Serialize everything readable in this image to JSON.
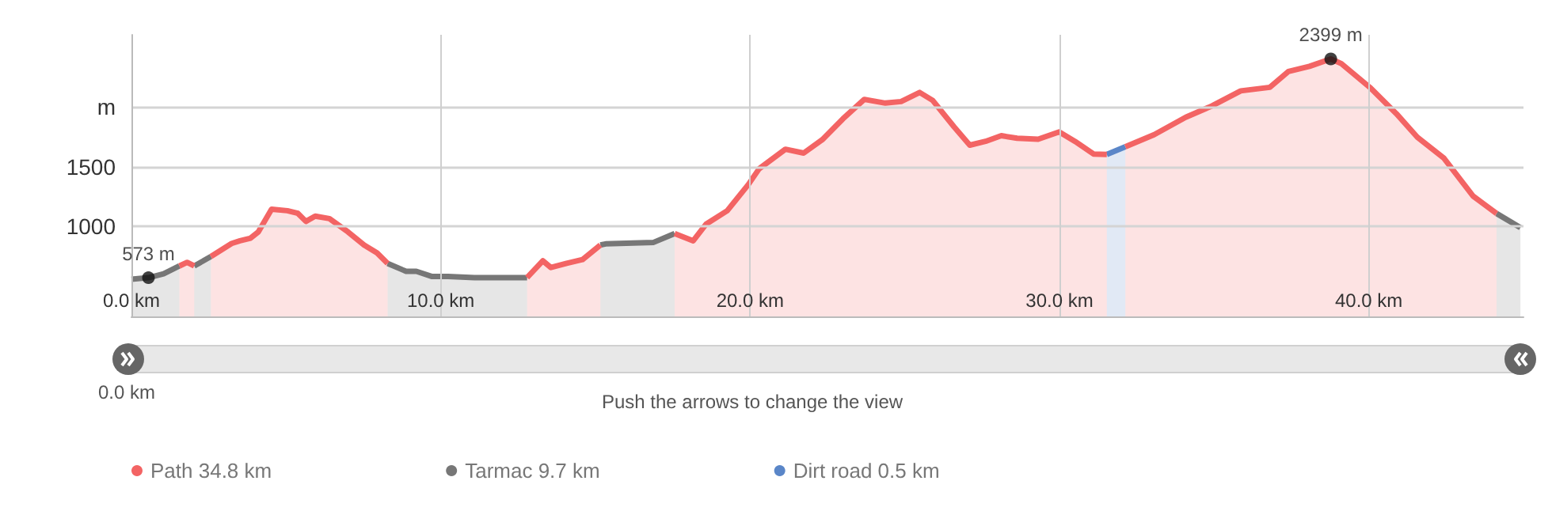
{
  "chart_data": {
    "type": "area",
    "xlim": [
      0,
      45
    ],
    "xticks": [
      {
        "value": 0,
        "label": "0.0 km"
      },
      {
        "value": 10,
        "label": "10.0 km"
      },
      {
        "value": 20,
        "label": "20.0 km"
      },
      {
        "value": 30,
        "label": "30.0 km"
      },
      {
        "value": 40,
        "label": "40.0 km"
      }
    ],
    "ylim": [
      250,
      2600
    ],
    "yticks": [
      1000,
      1500,
      {
        "value": 2000,
        "label": "m"
      }
    ],
    "grid": true,
    "legend": "bottom",
    "marker": "none",
    "line_style": "solid",
    "series": [
      {
        "name": "Path 34.8 km",
        "color": "#f36464",
        "x": [
          1.55,
          1.8,
          2.03,
          2.3,
          2.57,
          3.24,
          3.51,
          3.85,
          4.1,
          4.53,
          5.04,
          5.38,
          5.64,
          5.94,
          6.4,
          7.0,
          7.52,
          7.94,
          8.28,
          10.5,
          12.79,
          13.3,
          13.56,
          14.07,
          14.58,
          15.16,
          16.4,
          17.56,
          18.16,
          18.58,
          19.26,
          19.94,
          20.29,
          21.14,
          21.73,
          22.33,
          23.0,
          23.69,
          24.37,
          24.88,
          25.48,
          25.9,
          26.59,
          27.1,
          27.61,
          28.12,
          28.63,
          29.31,
          29.99,
          30.5,
          31.1,
          31.53,
          31.8,
          32.13,
          33.06,
          34.08,
          34.94,
          35.86,
          36.8,
          37.4,
          38.08,
          38.77,
          39.11,
          40.03,
          40.89,
          41.57,
          42.43,
          43.37,
          44.13
        ],
        "values": [
          671,
          701,
          671,
          null,
          750,
          859,
          881,
          903,
          955,
          1145,
          1132,
          1110,
          1043,
          1087,
          1066,
          955,
          846,
          780,
          692,
          null,
          574,
          714,
          658,
          693,
          724,
          846,
          null,
          942,
          881,
          1021,
          1132,
          1350,
          1482,
          1645,
          1613,
          1724,
          1899,
          2061,
          2030,
          2043,
          2119,
          2053,
          1833,
          1679,
          1711,
          1758,
          1737,
          1729,
          1790,
          1711,
          1605,
          1602,
          null,
          1666,
          1767,
          1912,
          2008,
          2132,
          2162,
          2294,
          2337,
          2399,
          2360,
          2162,
          1942,
          1745,
          1570,
          1254,
          1109
        ]
      },
      {
        "name": "Tarmac 9.7 km",
        "color": "#777777",
        "x": [
          0,
          0.55,
          1.04,
          1.55,
          1.8,
          2.03,
          2.57,
          5.0,
          8.28,
          8.88,
          9.21,
          9.72,
          10.23,
          11.09,
          12.79,
          14.0,
          15.16,
          15.33,
          16.88,
          17.56,
          30.0,
          44.13,
          44.9
        ],
        "values": [
          560,
          573,
          605,
          671,
          null,
          671,
          750,
          null,
          692,
          626,
          626,
          583,
          583,
          574,
          574,
          null,
          846,
          855,
          868,
          942,
          null,
          1109,
          991
        ]
      },
      {
        "name": "Dirt road 0.5 km",
        "color": "#5a86c8",
        "x": [
          31.53,
          32.13
        ],
        "values": [
          1602,
          1666
        ]
      }
    ],
    "annotations": [
      {
        "text": "573 m",
        "x": 0.55,
        "y": 573
      },
      {
        "text": "2399 m",
        "x": 38.77,
        "y": 2399
      },
      "0.0 km",
      "Push the arrows to change the view"
    ]
  }
}
